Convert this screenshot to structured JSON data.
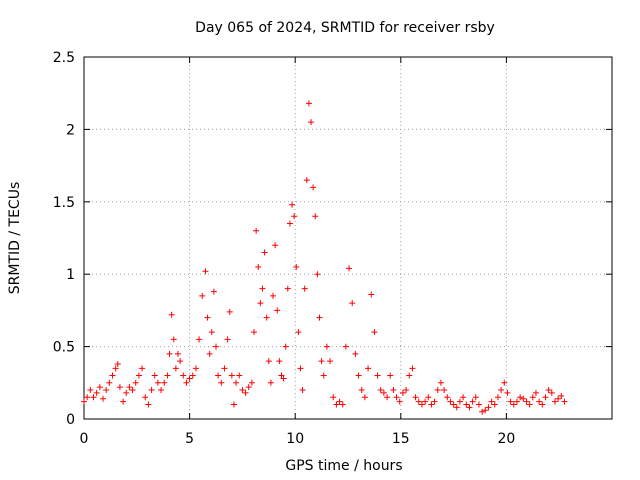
{
  "chart_data": {
    "type": "scatter",
    "title": "Day 065 of 2024, SRMTID for receiver rsby",
    "xlabel": "GPS time / hours",
    "ylabel": "SRMTID / TECUs",
    "xlim": [
      0,
      25
    ],
    "ylim": [
      0,
      2.5
    ],
    "xticks": [
      0,
      5,
      10,
      15,
      20
    ],
    "yticks": [
      0,
      0.5,
      1,
      1.5,
      2,
      2.5
    ],
    "xtick_labels": [
      "0",
      "5",
      "10",
      "15",
      "20"
    ],
    "ytick_labels": [
      "0",
      "0.5",
      "1",
      "1.5",
      "2",
      "2.5"
    ],
    "grid": true,
    "marker": "+",
    "color": "#ff0000",
    "series": [
      {
        "name": "SRMTID",
        "x": [
          0.0,
          0.15,
          0.3,
          0.45,
          0.6,
          0.75,
          0.9,
          1.05,
          1.2,
          1.35,
          1.5,
          1.6,
          1.7,
          1.85,
          2.0,
          2.15,
          2.3,
          2.45,
          2.6,
          2.75,
          2.9,
          3.05,
          3.2,
          3.35,
          3.5,
          3.65,
          3.8,
          3.95,
          4.05,
          4.15,
          4.25,
          4.35,
          4.45,
          4.55,
          4.7,
          4.85,
          5.0,
          5.15,
          5.3,
          5.45,
          5.6,
          5.75,
          5.85,
          5.95,
          6.05,
          6.15,
          6.25,
          6.35,
          6.5,
          6.65,
          6.8,
          6.9,
          7.0,
          7.1,
          7.2,
          7.35,
          7.5,
          7.65,
          7.8,
          7.95,
          8.05,
          8.15,
          8.25,
          8.35,
          8.45,
          8.55,
          8.65,
          8.75,
          8.85,
          8.95,
          9.05,
          9.15,
          9.25,
          9.35,
          9.45,
          9.55,
          9.65,
          9.75,
          9.85,
          9.95,
          10.05,
          10.15,
          10.25,
          10.35,
          10.45,
          10.55,
          10.65,
          10.75,
          10.85,
          10.95,
          11.05,
          11.15,
          11.25,
          11.35,
          11.5,
          11.65,
          11.8,
          11.95,
          12.1,
          12.25,
          12.4,
          12.55,
          12.7,
          12.85,
          13.0,
          13.15,
          13.3,
          13.45,
          13.6,
          13.75,
          13.9,
          14.05,
          14.2,
          14.35,
          14.5,
          14.65,
          14.8,
          14.95,
          15.1,
          15.25,
          15.4,
          15.55,
          15.7,
          15.85,
          16.0,
          16.15,
          16.3,
          16.45,
          16.6,
          16.75,
          16.9,
          17.05,
          17.2,
          17.35,
          17.5,
          17.65,
          17.8,
          17.95,
          18.1,
          18.25,
          18.4,
          18.55,
          18.7,
          18.85,
          19.0,
          19.15,
          19.3,
          19.45,
          19.6,
          19.75,
          19.9,
          20.05,
          20.2,
          20.35,
          20.5,
          20.65,
          20.8,
          20.95,
          21.1,
          21.25,
          21.4,
          21.55,
          21.7,
          21.85,
          22.0,
          22.15,
          22.3,
          22.45,
          22.6,
          22.75
        ],
        "y": [
          0.12,
          0.15,
          0.2,
          0.15,
          0.18,
          0.22,
          0.14,
          0.2,
          0.25,
          0.3,
          0.35,
          0.38,
          0.22,
          0.12,
          0.18,
          0.22,
          0.2,
          0.25,
          0.3,
          0.35,
          0.15,
          0.1,
          0.2,
          0.3,
          0.25,
          0.2,
          0.25,
          0.3,
          0.45,
          0.72,
          0.55,
          0.35,
          0.45,
          0.4,
          0.3,
          0.25,
          0.28,
          0.3,
          0.35,
          0.55,
          0.85,
          1.02,
          0.7,
          0.45,
          0.6,
          0.88,
          0.5,
          0.3,
          0.25,
          0.35,
          0.55,
          0.74,
          0.3,
          0.1,
          0.25,
          0.3,
          0.2,
          0.18,
          0.22,
          0.25,
          0.6,
          1.3,
          1.05,
          0.8,
          0.9,
          1.15,
          0.7,
          0.4,
          0.25,
          0.85,
          1.2,
          0.75,
          0.4,
          0.3,
          0.28,
          0.5,
          0.9,
          1.35,
          1.48,
          1.4,
          1.05,
          0.6,
          0.35,
          0.2,
          0.9,
          1.65,
          2.18,
          2.05,
          1.6,
          1.4,
          1.0,
          0.7,
          0.4,
          0.3,
          0.5,
          0.4,
          0.15,
          0.1,
          0.12,
          0.1,
          0.5,
          1.04,
          0.8,
          0.45,
          0.3,
          0.2,
          0.15,
          0.35,
          0.86,
          0.6,
          0.3,
          0.2,
          0.18,
          0.15,
          0.3,
          0.2,
          0.15,
          0.12,
          0.18,
          0.2,
          0.3,
          0.35,
          0.15,
          0.12,
          0.1,
          0.12,
          0.15,
          0.1,
          0.12,
          0.2,
          0.25,
          0.2,
          0.15,
          0.12,
          0.1,
          0.08,
          0.12,
          0.15,
          0.1,
          0.08,
          0.12,
          0.15,
          0.1,
          0.05,
          0.06,
          0.08,
          0.12,
          0.1,
          0.15,
          0.2,
          0.25,
          0.18,
          0.12,
          0.1,
          0.12,
          0.15,
          0.14,
          0.12,
          0.1,
          0.15,
          0.18,
          0.12,
          0.1,
          0.15,
          0.2,
          0.18,
          0.12,
          0.14,
          0.16,
          0.12
        ]
      }
    ]
  }
}
